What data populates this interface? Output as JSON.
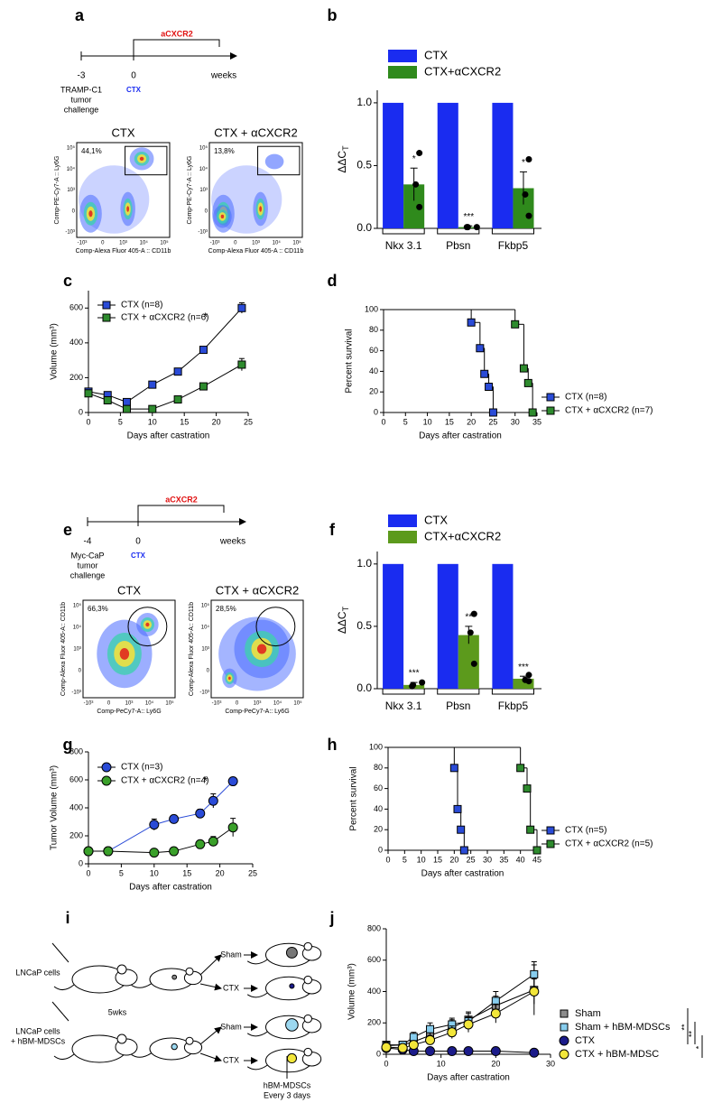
{
  "panel_labels": [
    "a",
    "b",
    "c",
    "d",
    "e",
    "f",
    "g",
    "h",
    "i",
    "j"
  ],
  "timelines": [
    {
      "start": "-3",
      "zero": "0",
      "end": "weeks",
      "treatment": "aCXCR2",
      "challenge": [
        "TRAMP-C1",
        "tumor",
        "challenge"
      ],
      "castration": "CTX"
    },
    {
      "start": "-4",
      "zero": "0",
      "end": "weeks",
      "treatment": "aCXCR2",
      "challenge": [
        "Myc-CaP",
        "tumor",
        "challenge"
      ],
      "castration": "CTX"
    }
  ],
  "flow_plots": [
    {
      "plots": [
        {
          "title": "CTX",
          "gate_percent": "44,1%"
        },
        {
          "title": "CTX + αCXCR2",
          "gate_percent": "13,8%"
        }
      ],
      "ylabel": "Comp-PE-Cy7-A :: Ly6G",
      "xlabel": "Comp-Alexa Fluor 405-A :: CD11b",
      "yticks": [
        "10⁵",
        "10⁴",
        "10³",
        "0",
        "-10³"
      ],
      "xticks": [
        "-10³",
        "0",
        "10³",
        "10⁴",
        "10⁵"
      ],
      "gate": "rect"
    },
    {
      "plots": [
        {
          "title": "CTX",
          "gate_percent": "66,3%"
        },
        {
          "title": "CTX + αCXCR2",
          "gate_percent": "28,5%"
        }
      ],
      "ylabel": "Comp-Alexa Fluor 405-A:: CD11b",
      "xlabel": "Comp-PeCy7-A:: Ly6G",
      "yticks": [
        "10⁵",
        "10⁴",
        "10³",
        "0",
        "-10³"
      ],
      "xticks": [
        "-10³",
        "0",
        "10³",
        "10⁴",
        "10⁵"
      ],
      "gate": "circle"
    }
  ],
  "chart_data": [
    {
      "type": "bar",
      "ylabel": "ΔΔC",
      "ylabel_subscript": "T",
      "categories": [
        "Nkx 3.1",
        "Pbsn",
        "Fkbp5"
      ],
      "ylim": [
        0,
        1.1
      ],
      "yticks": [
        {
          "value": 0,
          "label": "0.0"
        },
        {
          "value": 0.5,
          "label": "0.5"
        },
        {
          "value": 1,
          "label": "1.0"
        }
      ],
      "series": [
        {
          "name": "CTX",
          "color": "#1a2cf0",
          "values": [
            1,
            1,
            1
          ]
        },
        {
          "name": "CTX+αCXCR2",
          "color": "#2f8a1c",
          "values": [
            0.35,
            0.01,
            0.32
          ],
          "errors": [
            0.13,
            0.01,
            0.13
          ],
          "points": [
            [
              0.6,
              0.35,
              0.17
            ],
            [
              0.01,
              0.01,
              0.01
            ],
            [
              0.55,
              0.27,
              0.1
            ]
          ],
          "significance": [
            "*",
            "***",
            "*"
          ]
        }
      ]
    },
    {
      "type": "line",
      "xlabel": "Days after castration",
      "ylabel": "Volume (mm³)",
      "xlim": [
        0,
        25
      ],
      "xticks": [
        0,
        5,
        10,
        15,
        20,
        25
      ],
      "ylim": [
        0,
        700
      ],
      "yticks": [
        0,
        200,
        400,
        600
      ],
      "x": [
        0,
        3,
        6,
        10,
        14,
        18,
        24
      ],
      "annotation": "*",
      "series": [
        {
          "name": "CTX  (n=8)",
          "color": "#2a4bd7",
          "marker": "square",
          "line_color": "#000",
          "values": [
            120,
            100,
            60,
            160,
            235,
            360,
            600
          ],
          "errors": [
            15,
            15,
            10,
            15,
            15,
            15,
            30
          ]
        },
        {
          "name": "CTX + αCXCR2 (n=6)",
          "color": "#2e8b2e",
          "marker": "square",
          "line_color": "#000",
          "values": [
            110,
            70,
            20,
            20,
            75,
            150,
            275
          ],
          "errors": [
            15,
            10,
            5,
            5,
            10,
            15,
            35
          ]
        }
      ]
    },
    {
      "type": "survival",
      "xlabel": "Days after castration",
      "ylabel": "Percent survival",
      "xlim": [
        0,
        35
      ],
      "xticks": [
        0,
        5,
        10,
        15,
        20,
        25,
        30,
        35
      ],
      "ylim": [
        0,
        100
      ],
      "yticks": [
        0,
        20,
        40,
        60,
        80,
        100
      ],
      "series": [
        {
          "name": "CTX  (n=8)",
          "color": "#2a4bd7",
          "marker": "square",
          "line_color": "#000",
          "x": [
            0,
            20,
            22,
            23,
            24,
            25
          ],
          "values": [
            100,
            87.5,
            62.5,
            37.5,
            25,
            0
          ]
        },
        {
          "name": "CTX + αCXCR2 (n=7)",
          "color": "#2e8b2e",
          "marker": "square",
          "line_color": "#000",
          "x": [
            0,
            30,
            32,
            33,
            34
          ],
          "values": [
            100,
            85.7,
            42.9,
            28.6,
            0
          ]
        }
      ]
    },
    {
      "type": "bar",
      "ylabel": "ΔΔC",
      "ylabel_subscript": "T",
      "categories": [
        "Nkx 3.1",
        "Pbsn",
        "Fkbp5"
      ],
      "ylim": [
        0,
        1.1
      ],
      "yticks": [
        {
          "value": 0,
          "label": "0.0"
        },
        {
          "value": 0.5,
          "label": "0.5"
        },
        {
          "value": 1,
          "label": "1.0"
        }
      ],
      "series": [
        {
          "name": "CTX",
          "color": "#1a2cf0",
          "values": [
            1,
            1,
            1
          ]
        },
        {
          "name": "CTX+αCXCR2",
          "color": "#5c9a1c",
          "values": [
            0.03,
            0.43,
            0.08
          ],
          "errors": [
            0.02,
            0.07,
            0.02
          ],
          "points": [
            [
              0.05,
              0.03,
              0.02
            ],
            [
              0.6,
              0.45,
              0.2
            ],
            [
              0.11,
              0.07,
              0.06
            ]
          ],
          "significance": [
            "***",
            "**",
            "***"
          ]
        }
      ]
    },
    {
      "type": "line",
      "xlabel": "Days after castration",
      "ylabel": "Tumor Volume (mm³)",
      "xlim": [
        0,
        25
      ],
      "xticks": [
        0,
        5,
        10,
        15,
        20,
        25
      ],
      "ylim": [
        0,
        800
      ],
      "yticks": [
        0,
        200,
        400,
        600,
        800
      ],
      "x": [
        0,
        3,
        10,
        13,
        17,
        19,
        22
      ],
      "annotation": "*",
      "series": [
        {
          "name": "CTX  (n=3)",
          "color": "#2a4bd7",
          "marker": "circle",
          "line_color": "#2a4bd7",
          "values": [
            90,
            90,
            280,
            320,
            360,
            450,
            590
          ],
          "errors": [
            0,
            0,
            40,
            20,
            30,
            50,
            25
          ]
        },
        {
          "name": "CTX + αCXCR2 (n=4)",
          "color": "#3aa02a",
          "marker": "circle",
          "line_color": "#000",
          "values": [
            90,
            90,
            80,
            90,
            140,
            160,
            260
          ],
          "errors": [
            0,
            0,
            20,
            10,
            20,
            35,
            65
          ]
        }
      ]
    },
    {
      "type": "survival",
      "xlabel": "Days after castration",
      "ylabel": "Percent survival",
      "xlim": [
        0,
        45
      ],
      "xticks": [
        0,
        5,
        10,
        15,
        20,
        25,
        30,
        35,
        40,
        45
      ],
      "ylim": [
        0,
        100
      ],
      "yticks": [
        0,
        20,
        40,
        60,
        80,
        100
      ],
      "series": [
        {
          "name": "CTX  (n=5)",
          "color": "#2a4bd7",
          "marker": "square",
          "line_color": "#2a4bd7",
          "x": [
            0,
            20,
            21,
            22,
            23
          ],
          "values": [
            100,
            80,
            40,
            20,
            0
          ]
        },
        {
          "name": "CTX + αCXCR2 (n=5)",
          "color": "#2e8b2e",
          "marker": "square",
          "line_color": "#000",
          "x": [
            0,
            40,
            42,
            43,
            45
          ],
          "values": [
            100,
            80,
            60,
            20,
            0
          ]
        }
      ]
    },
    {
      "type": "line",
      "xlabel": "Days after castration",
      "ylabel": "Volume (mm³)",
      "xlim": [
        0,
        30
      ],
      "xticks": [
        0,
        10,
        20,
        30
      ],
      "ylim": [
        0,
        800
      ],
      "yticks": [
        0,
        200,
        400,
        600,
        800
      ],
      "x": [
        0,
        3,
        5,
        8,
        12,
        15,
        20,
        27
      ],
      "significance": [
        "**",
        "**",
        "*"
      ],
      "series": [
        {
          "name": "Sham",
          "color": "#8c8c8c",
          "marker": "square",
          "line_color": "#000",
          "values": [
            60,
            60,
            80,
            120,
            170,
            220,
            310,
            410
          ],
          "errors": [
            10,
            15,
            30,
            40,
            50,
            50,
            60,
            160
          ]
        },
        {
          "name": "Sham + hBM-MDSCs",
          "color": "#87cdee",
          "marker": "square",
          "line_color": "#000",
          "values": [
            55,
            60,
            110,
            160,
            190,
            210,
            340,
            510
          ],
          "errors": [
            10,
            15,
            30,
            40,
            40,
            50,
            60,
            80
          ]
        },
        {
          "name": "CTX",
          "color": "#1b1b8a",
          "marker": "circle",
          "line_color": "#000",
          "values": [
            40,
            30,
            20,
            20,
            20,
            20,
            20,
            10
          ],
          "errors": [
            5,
            5,
            5,
            5,
            5,
            5,
            5,
            3
          ]
        },
        {
          "name": "CTX + hBM-MDSC",
          "color": "#f2e63a",
          "marker": "circle",
          "line_color": "#000",
          "values": [
            45,
            40,
            60,
            90,
            140,
            190,
            260,
            400
          ],
          "errors": [
            10,
            10,
            20,
            30,
            40,
            50,
            60,
            80
          ]
        }
      ]
    }
  ],
  "schematic": {
    "top_injection": "LNCaP cells",
    "bottom_injection": [
      "LNCaP cells",
      "+ hBM-MDSCs"
    ],
    "interval": "5wks",
    "arms": [
      "Sham",
      "CTX",
      "Sham",
      "CTX"
    ],
    "treatment": [
      "hBM-MDSCs",
      "Every 3 days"
    ]
  }
}
